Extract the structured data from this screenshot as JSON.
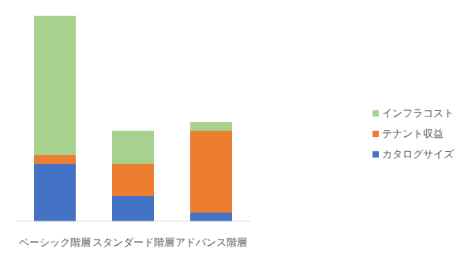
{
  "chart_data": {
    "type": "bar",
    "stacked": true,
    "categories": [
      "ベーシック階層",
      "スタンダード階層",
      "アドバンス階層"
    ],
    "series": [
      {
        "name": "カタログサイズ",
        "color": "#4472c4",
        "values": [
          73,
          32,
          11
        ]
      },
      {
        "name": "テナント収益",
        "color": "#ed7d31",
        "values": [
          11,
          41,
          104
        ]
      },
      {
        "name": "インフラコスト",
        "color": "#a9d18e",
        "values": [
          177,
          42,
          11
        ]
      }
    ],
    "ylim": [
      0,
      261
    ],
    "tick_labels": "x",
    "grid": false,
    "legend": "right"
  }
}
